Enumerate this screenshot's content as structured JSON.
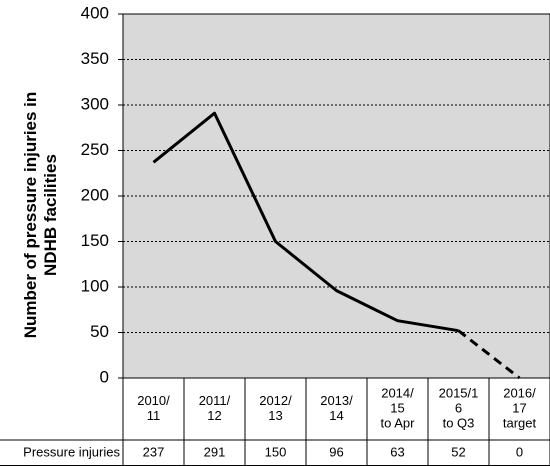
{
  "chart_data": {
    "type": "line",
    "ylabel": [
      "Number of pressure injuries in",
      "NDHB facilities"
    ],
    "categories": [
      [
        "2010/",
        "11"
      ],
      [
        "2011/",
        "12"
      ],
      [
        "2012/",
        "13"
      ],
      [
        "2013/",
        "14"
      ],
      [
        "2014/",
        "15",
        "to Apr"
      ],
      [
        "2015/1",
        "6",
        "to Q3"
      ],
      [
        "2016/",
        "17",
        "target"
      ]
    ],
    "series": [
      {
        "name": "Pressure injuries",
        "color": "#000000",
        "values": [
          237,
          291,
          150,
          96,
          63,
          52,
          0
        ]
      }
    ],
    "dashed_last": true,
    "ylim": [
      0,
      400
    ],
    "yticks": [
      0,
      50,
      100,
      150,
      200,
      250,
      300,
      350,
      400
    ],
    "grid": true,
    "background": "#d9d9d9"
  }
}
